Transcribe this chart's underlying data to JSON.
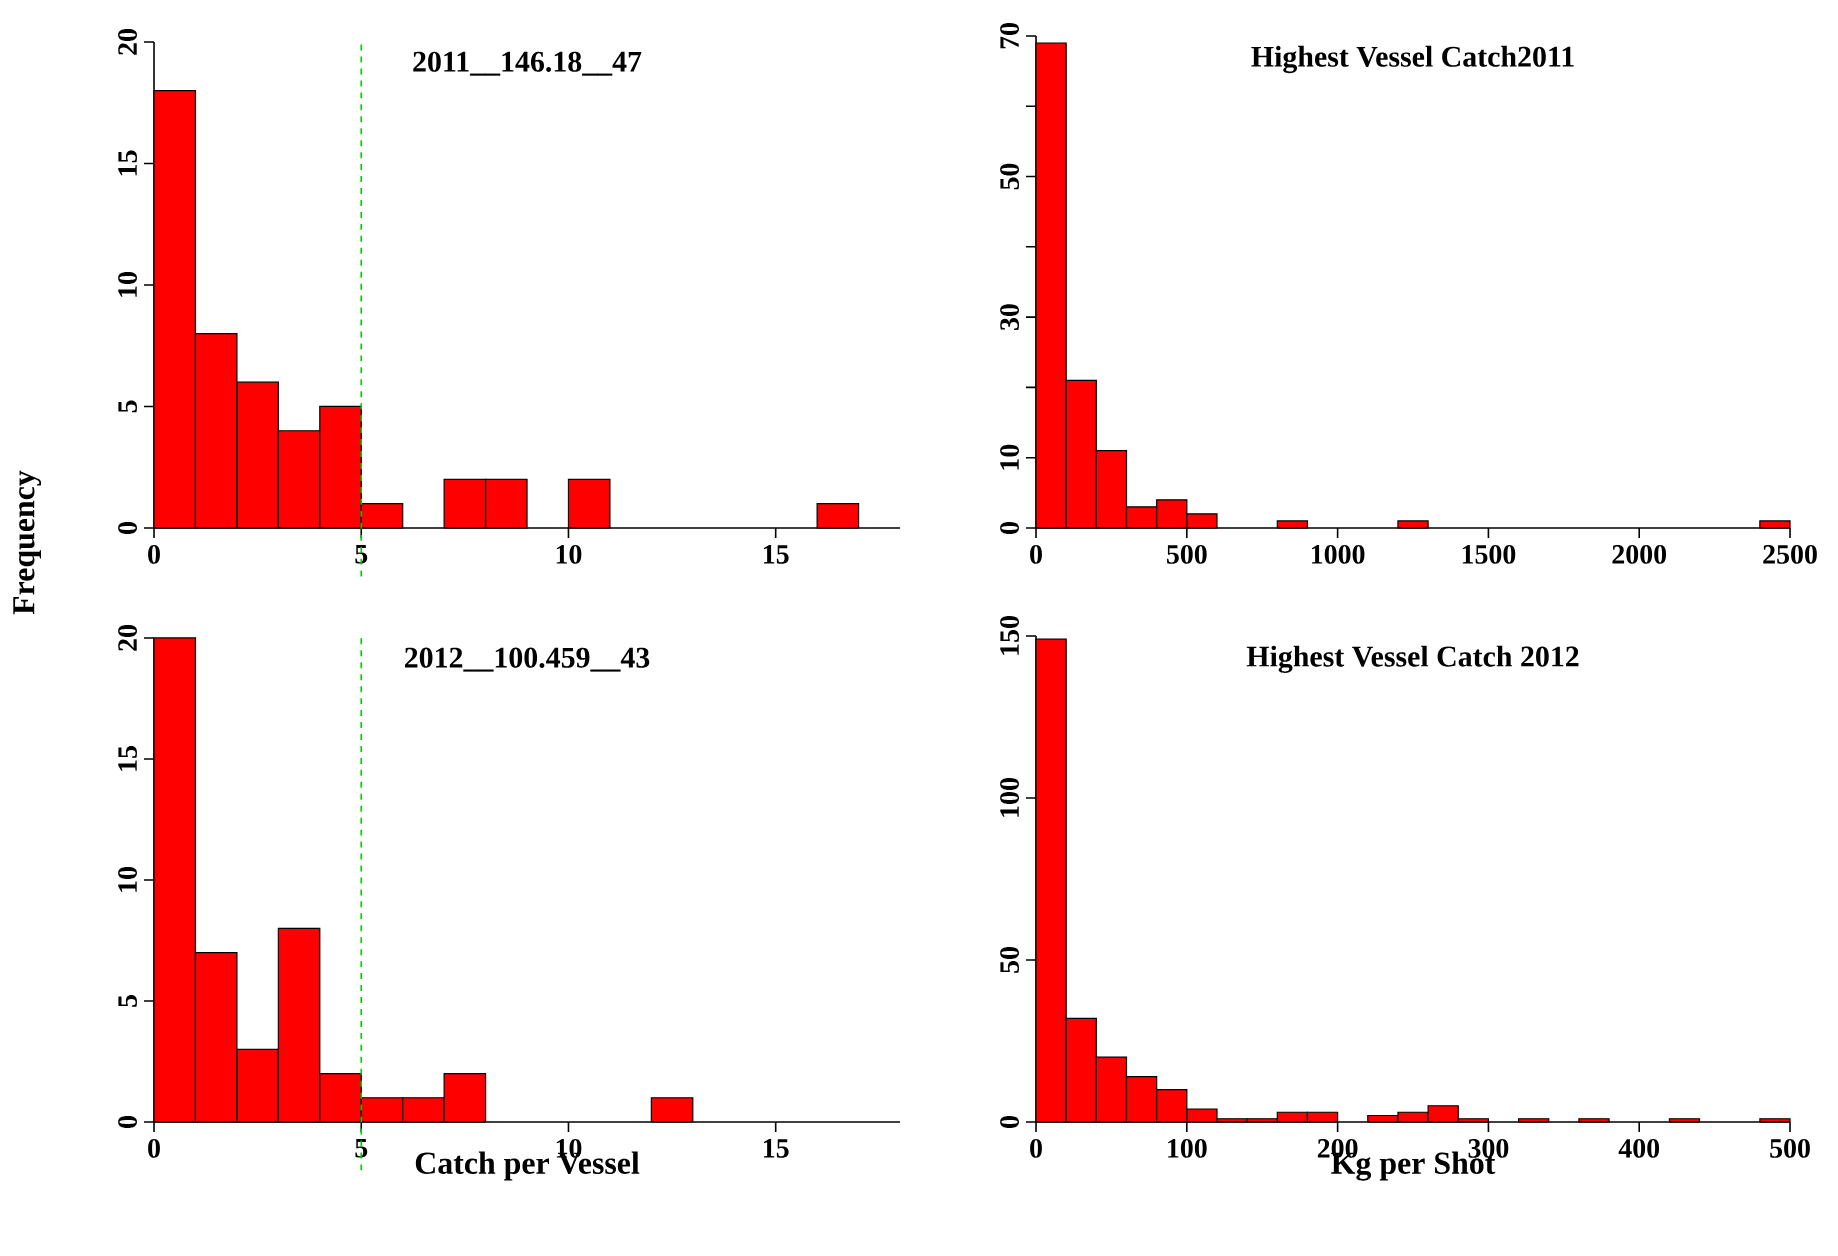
{
  "chart_data": [
    {
      "type": "histogram",
      "title": "2011__146.18__47",
      "ylabel": "Frequency",
      "color": "#ff0000",
      "bins": [
        0,
        1,
        2,
        3,
        4,
        5,
        6,
        7,
        8,
        9,
        10,
        11,
        12,
        13,
        14,
        15,
        16,
        17
      ],
      "values": [
        18,
        8,
        6,
        4,
        5,
        1,
        0,
        2,
        2,
        0,
        2,
        0,
        0,
        0,
        0,
        0,
        1
      ],
      "xlim": [
        0,
        18
      ],
      "ylim": [
        0,
        20
      ],
      "xticks": [
        0,
        5,
        10,
        15
      ],
      "yticks": [
        0,
        5,
        10,
        15,
        20
      ],
      "ref_lines": [
        {
          "axis": "x",
          "value": 5,
          "color": "#00cc00",
          "line_style": "dashed"
        }
      ]
    },
    {
      "type": "histogram",
      "title": "Highest Vessel Catch2011",
      "color": "#ff0000",
      "bins": [
        0,
        100,
        200,
        300,
        400,
        500,
        600,
        700,
        800,
        900,
        1000,
        1100,
        1200,
        1300,
        1400,
        1500,
        1600,
        1700,
        1800,
        1900,
        2000,
        2100,
        2200,
        2300,
        2400,
        2500
      ],
      "values": [
        69,
        21,
        11,
        3,
        4,
        2,
        0,
        0,
        1,
        0,
        0,
        0,
        1,
        0,
        0,
        0,
        0,
        0,
        0,
        0,
        0,
        0,
        0,
        0,
        1
      ],
      "xlim": [
        0,
        2500
      ],
      "ylim": [
        0,
        70
      ],
      "xticks": [
        0,
        500,
        1000,
        1500,
        2000,
        2500
      ],
      "yticks": [
        0,
        10,
        {
          "value": 20,
          "label": null
        },
        30,
        {
          "value": 40,
          "label": null
        },
        50,
        {
          "value": 60,
          "label": null
        },
        70
      ]
    },
    {
      "type": "histogram",
      "title": "2012__100.459__43",
      "xlabel": "Catch per Vessel",
      "color": "#ff0000",
      "bins": [
        0,
        1,
        2,
        3,
        4,
        5,
        6,
        7,
        8,
        9,
        10,
        11,
        12,
        13
      ],
      "values": [
        20,
        7,
        3,
        8,
        2,
        1,
        1,
        2,
        0,
        0,
        0,
        0,
        1
      ],
      "xlim": [
        0,
        18
      ],
      "ylim": [
        0,
        20
      ],
      "xticks": [
        0,
        5,
        10,
        15
      ],
      "yticks": [
        0,
        5,
        10,
        15,
        20
      ],
      "ref_lines": [
        {
          "axis": "x",
          "value": 5,
          "color": "#00cc00",
          "line_style": "dashed"
        }
      ]
    },
    {
      "type": "histogram",
      "title": "Highest Vessel Catch 2012",
      "xlabel": "Kg per Shot",
      "color": "#ff0000",
      "bins": [
        0,
        20,
        40,
        60,
        80,
        100,
        120,
        140,
        160,
        180,
        200,
        220,
        240,
        260,
        280,
        300,
        320,
        340,
        360,
        380,
        400,
        420,
        440,
        460,
        480,
        500
      ],
      "values": [
        149,
        32,
        20,
        14,
        10,
        4,
        1,
        1,
        3,
        3,
        0,
        2,
        3,
        5,
        1,
        0,
        1,
        0,
        1,
        0,
        0,
        1,
        0,
        0,
        1
      ],
      "xlim": [
        0,
        500
      ],
      "ylim": [
        0,
        150
      ],
      "xticks": [
        0,
        100,
        200,
        300,
        400,
        500
      ],
      "yticks": [
        0,
        50,
        100,
        150
      ]
    }
  ]
}
